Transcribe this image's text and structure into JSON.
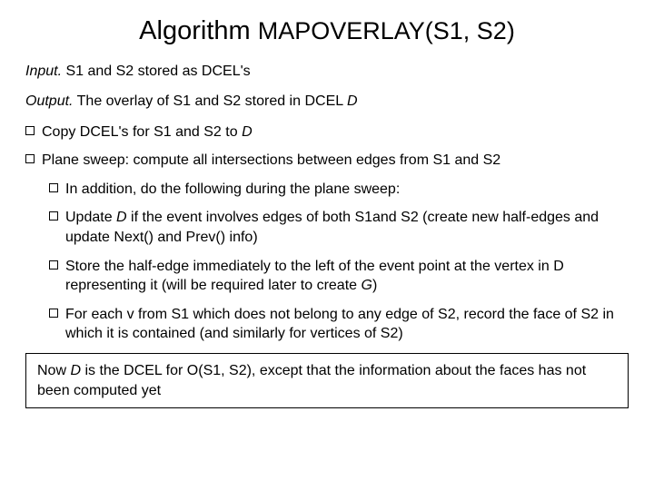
{
  "title": {
    "prefix": "Algorithm ",
    "name": "MAPOVERLAY(S1, S2)"
  },
  "input": {
    "label": "Input.",
    "text": " S1 and S2 stored as DCEL's"
  },
  "output": {
    "label": "Output.",
    "text": " The overlay of S1 and S2 stored in DCEL ",
    "em": "D"
  },
  "bullets": [
    {
      "text_before": "Copy DCEL's for S1 and S2 to ",
      "em": "D",
      "level": 0
    },
    {
      "text_before": "Plane sweep: compute all intersections between edges from S1 and S2",
      "level": 0
    },
    {
      "text_before": "In addition, do the following during the plane sweep:",
      "level": 1
    },
    {
      "text_before": "Update ",
      "em": "D",
      "text_after": " if the event involves edges of both S1and S2 (create new half-edges and update Next() and Prev() info)",
      "level": 1
    },
    {
      "text_before": "Store the half-edge immediately to the left of the event point at the vertex in D representing it (will be required later to create ",
      "em": "G",
      "text_after": ")",
      "level": 1
    },
    {
      "text_before": "For each v from S1 which does not belong to any edge of S2, record the face of S2 in which it is contained (and similarly for vertices of S2)",
      "level": 1
    }
  ],
  "note": {
    "before": "Now ",
    "em": "D",
    "after": " is the DCEL for O(S1, S2), except that the information about the faces has not been computed yet"
  }
}
